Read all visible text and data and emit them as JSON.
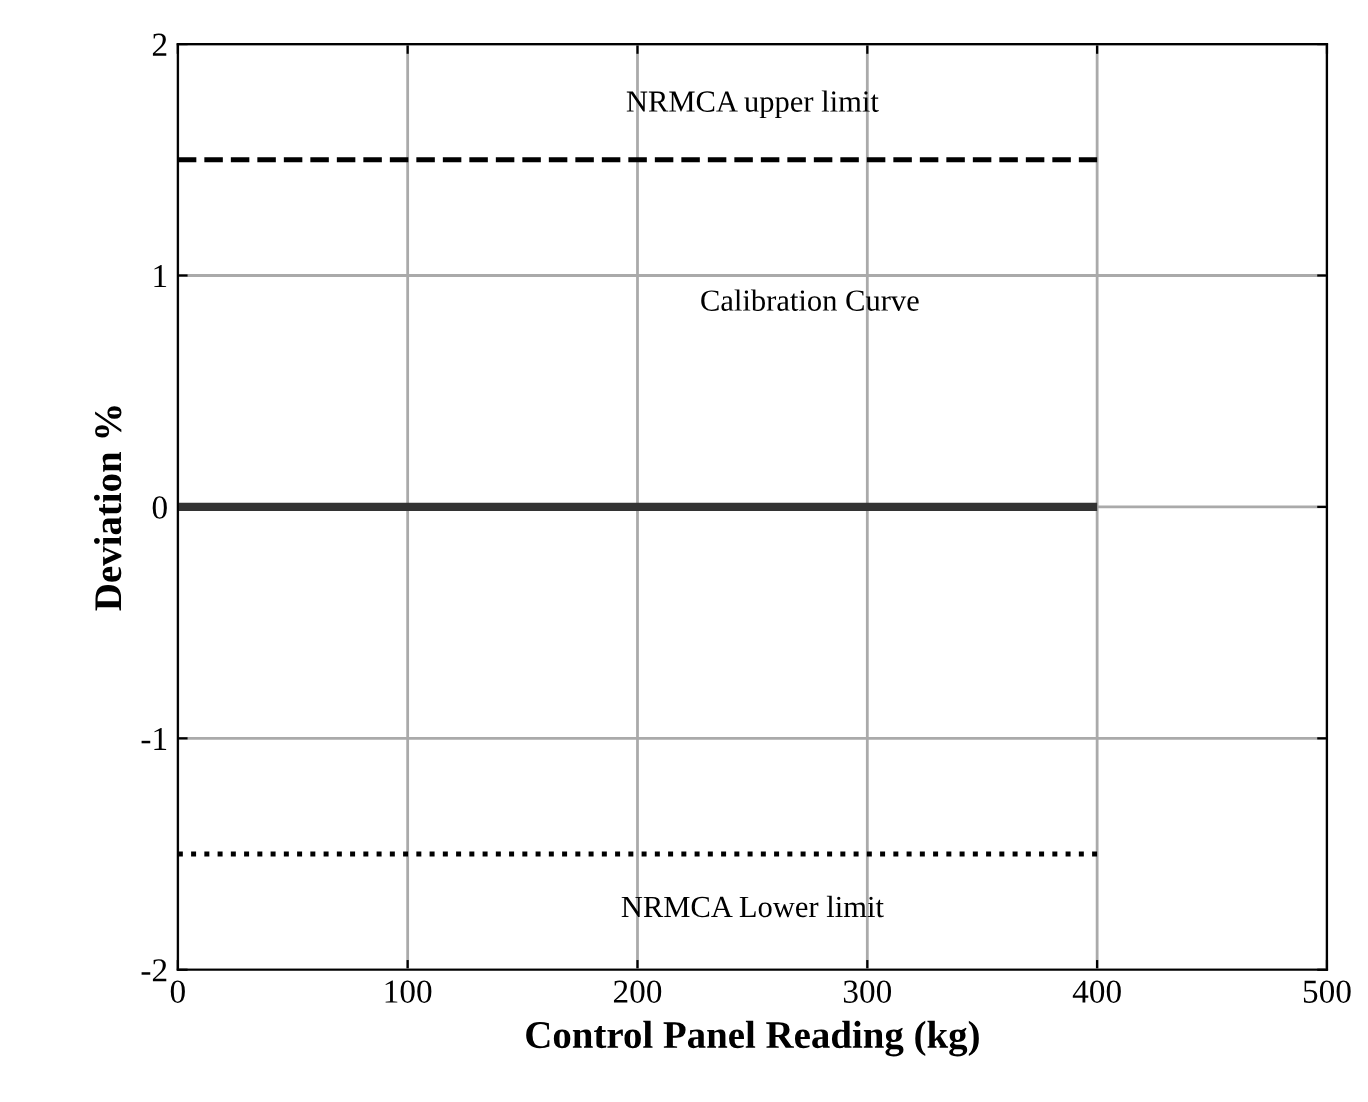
{
  "chart_data": {
    "type": "line",
    "x": [
      0,
      400
    ],
    "xlabel": "Control Panel Reading (kg)",
    "ylabel": "Deviation %",
    "xlim": [
      0,
      500
    ],
    "xticks": [
      0,
      100,
      200,
      300,
      400,
      500
    ],
    "ylim": [
      -2,
      2
    ],
    "yticks": [
      -2,
      -1,
      0,
      1,
      2
    ],
    "grid": true,
    "marker": "none",
    "series": [
      {
        "values": [
          1.5,
          1.5
        ],
        "color": "#000000",
        "line_style": "dashed"
      },
      {
        "values": [
          0,
          0
        ],
        "color": "#333333",
        "line_style": "solid"
      },
      {
        "values": [
          -1.5,
          -1.5
        ],
        "color": "#000000",
        "line_style": "dotted"
      }
    ],
    "annotations": [
      "NRMCA upper limit",
      "Calibration Curve",
      "NRMCA Lower limit"
    ]
  }
}
